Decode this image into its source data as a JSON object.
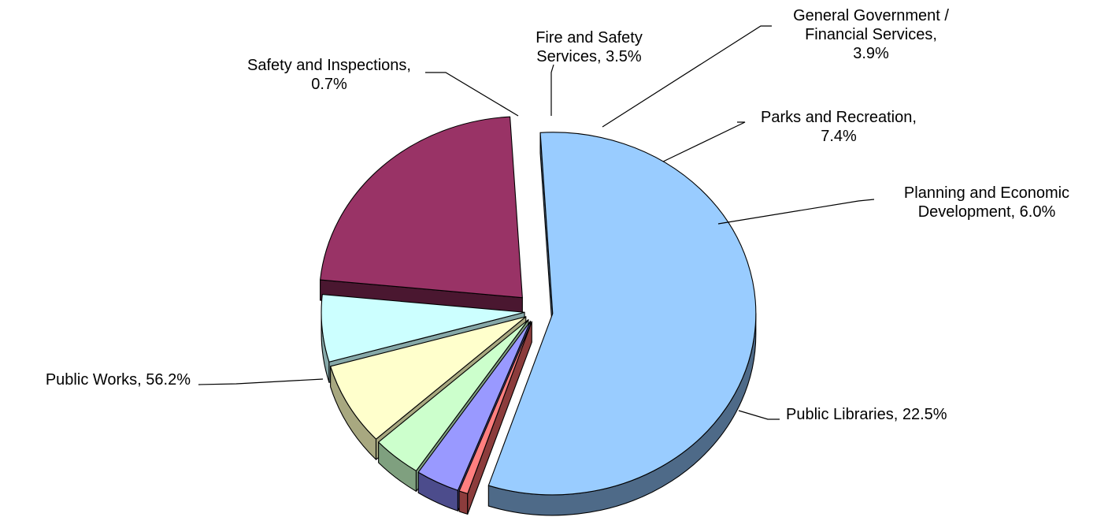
{
  "chart_data": {
    "type": "pie",
    "style": "3d-exploded",
    "title": "",
    "legend": "none",
    "slices": [
      {
        "label": "Public Works",
        "value": 56.2,
        "color": "#99CCFF",
        "side_color": "#4E6A88",
        "label_lines": [
          "Public Works, 56.2%"
        ]
      },
      {
        "label": "Safety and Inspections",
        "value": 0.7,
        "color": "#FF7F7F",
        "side_color": "#8C3C3C",
        "label_lines": [
          "Safety and Inspections,",
          "0.7%"
        ]
      },
      {
        "label": "Fire and Safety Services",
        "value": 3.5,
        "color": "#9999FF",
        "side_color": "#4C4C8C",
        "label_lines": [
          "Fire and Safety",
          "Services, 3.5%"
        ]
      },
      {
        "label": "General Government / Financial Services",
        "value": 3.9,
        "color": "#CCFFCC",
        "side_color": "#7FA07F",
        "label_lines": [
          "General Government /",
          "Financial Services,",
          "3.9%"
        ]
      },
      {
        "label": "Parks and Recreation",
        "value": 7.4,
        "color": "#FFFFCC",
        "side_color": "#A8A880",
        "label_lines": [
          "Parks and Recreation,",
          "7.4%"
        ]
      },
      {
        "label": "Planning and Economic Development",
        "value": 6.0,
        "color": "#CCFFFF",
        "side_color": "#86A8A8",
        "label_lines": [
          "Planning and Economic",
          "Development, 6.0%"
        ]
      },
      {
        "label": "Public Libraries",
        "value": 22.5,
        "color": "#993366",
        "side_color": "#4A1730",
        "label_lines": [
          "Public Libraries, 22.5%"
        ]
      }
    ]
  }
}
